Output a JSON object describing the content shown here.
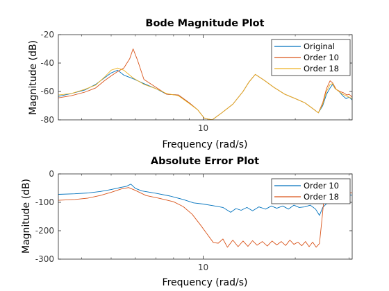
{
  "colors": {
    "blue": "#0072bd",
    "orange": "#d95319",
    "yellow": "#edb120",
    "axes": "#262626",
    "tick_text": "#3a3a3a"
  },
  "chart_data": [
    {
      "type": "line",
      "title": "Bode Magnitude Plot",
      "xlabel": "Frequency  (rad/s)",
      "ylabel": "Magnitude (dB)",
      "xscale": "log",
      "xlim": [
        3.36,
        30.7
      ],
      "ylim": [
        -80,
        -20
      ],
      "yticks": [
        -80,
        -60,
        -40,
        -20
      ],
      "ytick_labels": [
        "-80",
        "-60",
        "-40",
        "-20"
      ],
      "xticks": [
        10
      ],
      "xtick_labels": [
        "10"
      ],
      "grid": false,
      "legend_position": "top-right",
      "series": [
        {
          "name": "Original",
          "color_key": "blue",
          "x": [
            3.36,
            3.7,
            4.1,
            4.45,
            4.75,
            5.0,
            5.25,
            5.5,
            5.9,
            6.4,
            7.0,
            7.6,
            8.3,
            9.0,
            9.6,
            10.1,
            10.7,
            11.5,
            12.5,
            13.5,
            14.1,
            14.8,
            15.8,
            17.0,
            18.5,
            20.0,
            21.5,
            22.8,
            23.8,
            24.6,
            25.3,
            26.0,
            26.5,
            27.0,
            27.8,
            28.6,
            29.3,
            30.0,
            30.7
          ],
          "y": [
            -63.5,
            -61.5,
            -59.0,
            -55.0,
            -50.5,
            -47.0,
            -45.0,
            -48.5,
            -51.0,
            -54.5,
            -58.0,
            -62.0,
            -62.5,
            -68.0,
            -73.0,
            -79.0,
            -80.0,
            -75.0,
            -69.0,
            -60.0,
            -53.5,
            -48.0,
            -52.0,
            -57.0,
            -62.0,
            -65.0,
            -68.0,
            -72.0,
            -75.0,
            -70.0,
            -62.0,
            -57.5,
            -55.0,
            -58.0,
            -60.0,
            -63.0,
            -65.0,
            -64.0,
            -66.0
          ]
        },
        {
          "name": "Order 10",
          "color_key": "orange",
          "x": [
            3.36,
            3.7,
            4.1,
            4.45,
            4.75,
            5.0,
            5.25,
            5.5,
            5.75,
            5.9,
            6.1,
            6.4,
            7.0,
            7.6,
            8.3,
            9.0,
            9.6,
            10.1,
            10.7,
            11.5,
            12.5,
            13.5,
            14.1,
            14.8,
            15.8,
            17.0,
            18.5,
            20.0,
            21.5,
            22.8,
            23.8,
            24.6,
            25.3,
            26.0,
            26.5,
            27.2,
            28.0,
            28.8,
            29.5,
            30.0,
            30.7
          ],
          "y": [
            -64.5,
            -63.0,
            -60.5,
            -57.5,
            -52.5,
            -49.0,
            -46.0,
            -43.5,
            -37.0,
            -30.0,
            -38.0,
            -51.5,
            -57.0,
            -62.0,
            -62.5,
            -68.0,
            -73.0,
            -79.0,
            -80.0,
            -75.0,
            -69.0,
            -60.0,
            -53.5,
            -48.0,
            -52.0,
            -57.0,
            -62.0,
            -65.0,
            -68.0,
            -72.0,
            -75.0,
            -68.0,
            -58.0,
            -52.5,
            -54.0,
            -58.5,
            -60.0,
            -61.0,
            -62.5,
            -62.0,
            -64.0
          ]
        },
        {
          "name": "Order 18",
          "color_key": "yellow",
          "x": [
            3.36,
            3.7,
            4.1,
            4.45,
            4.75,
            5.0,
            5.25,
            5.5,
            5.9,
            6.4,
            7.0,
            7.6,
            8.3,
            9.0,
            9.6,
            10.1,
            10.7,
            11.5,
            12.5,
            13.5,
            14.1,
            14.8,
            15.8,
            17.0,
            18.5,
            20.0,
            21.5,
            22.8,
            23.8,
            24.6,
            25.3,
            26.0,
            26.5,
            27.0,
            27.8,
            28.6,
            29.3,
            30.0,
            30.7
          ],
          "y": [
            -62.5,
            -61.5,
            -58.5,
            -55.5,
            -50.0,
            -45.0,
            -43.5,
            -45.0,
            -50.5,
            -55.0,
            -58.0,
            -61.5,
            -63.0,
            -68.5,
            -73.0,
            -79.0,
            -80.0,
            -75.0,
            -69.0,
            -60.0,
            -53.5,
            -48.0,
            -52.0,
            -57.0,
            -62.0,
            -65.0,
            -68.0,
            -72.0,
            -75.0,
            -69.0,
            -60.0,
            -55.0,
            -54.5,
            -58.0,
            -60.0,
            -62.0,
            -63.0,
            -64.0,
            -65.0
          ]
        }
      ]
    },
    {
      "type": "line",
      "title": "Absolute Error Plot",
      "xlabel": "Frequency  (rad/s)",
      "ylabel": "Magnitude (dB)",
      "xscale": "log",
      "xlim": [
        3.36,
        30.7
      ],
      "ylim": [
        -300,
        0
      ],
      "yticks": [
        -300,
        -200,
        -100,
        0
      ],
      "ytick_labels": [
        "-300",
        "-200",
        "-100",
        "0"
      ],
      "xticks": [
        10
      ],
      "xtick_labels": [
        "10"
      ],
      "grid": false,
      "legend_position": "top-right",
      "series": [
        {
          "name": "Order 10",
          "color_key": "blue",
          "x": [
            3.36,
            3.8,
            4.2,
            4.6,
            5.0,
            5.35,
            5.6,
            5.8,
            6.0,
            6.3,
            7.0,
            7.8,
            8.6,
            9.3,
            10.0,
            10.8,
            11.6,
            12.3,
            12.8,
            13.3,
            13.9,
            14.5,
            15.2,
            16.0,
            16.7,
            17.4,
            18.2,
            19.0,
            19.8,
            20.6,
            21.5,
            22.4,
            23.3,
            24.0,
            24.6,
            25.3,
            26.5,
            28.0,
            29.5,
            30.7
          ],
          "y": [
            -72.0,
            -70.0,
            -67.0,
            -62.0,
            -55.0,
            -48.0,
            -44.0,
            -36.0,
            -51.0,
            -60.0,
            -68.0,
            -78.0,
            -90.0,
            -102.0,
            -106.0,
            -112.0,
            -118.0,
            -135.0,
            -122.0,
            -128.0,
            -118.0,
            -130.0,
            -116.0,
            -124.0,
            -113.0,
            -121.0,
            -113.0,
            -124.0,
            -110.0,
            -118.0,
            -116.0,
            -110.0,
            -124.0,
            -146.0,
            -118.0,
            -105.0,
            -93.0,
            -80.0,
            -72.0,
            -75.0
          ]
        },
        {
          "name": "Order 18",
          "color_key": "orange",
          "x": [
            3.36,
            3.8,
            4.2,
            4.6,
            5.0,
            5.4,
            5.7,
            6.0,
            6.5,
            7.2,
            8.0,
            8.6,
            9.2,
            9.8,
            10.3,
            10.8,
            11.2,
            11.6,
            12.0,
            12.5,
            13.0,
            13.5,
            14.0,
            14.5,
            15.0,
            15.6,
            16.2,
            16.8,
            17.4,
            18.0,
            18.6,
            19.2,
            19.8,
            20.4,
            21.0,
            21.6,
            22.2,
            22.8,
            23.4,
            24.0,
            24.5,
            24.8,
            25.3,
            26.2,
            27.5,
            28.5,
            29.5,
            30.7
          ],
          "y": [
            -93.0,
            -90.0,
            -85.0,
            -76.0,
            -65.0,
            -53.0,
            -48.0,
            -58.0,
            -76.0,
            -86.0,
            -98.0,
            -115.0,
            -142.0,
            -180.0,
            -212.0,
            -242.0,
            -244.0,
            -229.0,
            -258.0,
            -233.0,
            -256.0,
            -236.0,
            -255.0,
            -235.0,
            -251.0,
            -238.0,
            -254.0,
            -236.0,
            -250.0,
            -238.0,
            -252.0,
            -233.0,
            -248.0,
            -240.0,
            -253.0,
            -238.0,
            -256.0,
            -240.0,
            -258.0,
            -245.0,
            -150.0,
            -92.0,
            -84.0,
            -78.0,
            -73.0,
            -70.0,
            -68.0,
            -66.0
          ]
        }
      ]
    }
  ]
}
